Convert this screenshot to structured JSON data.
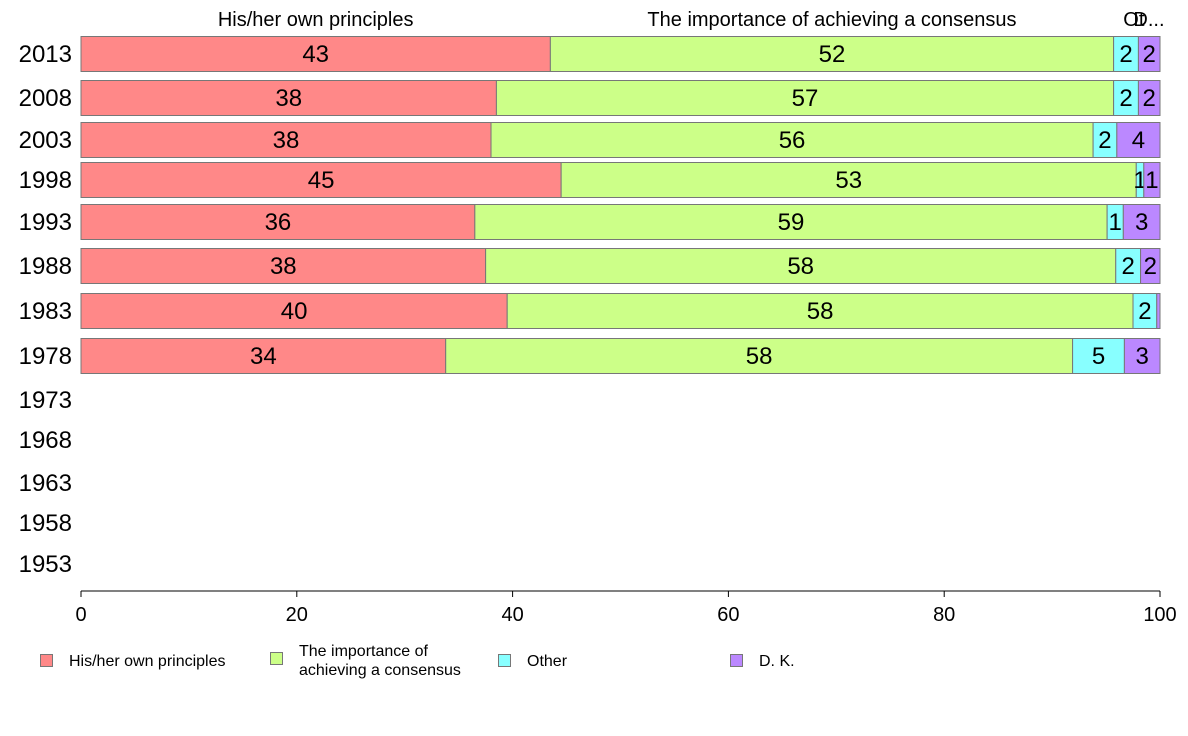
{
  "chart_data": {
    "type": "bar",
    "orientation": "horizontal",
    "stacked": true,
    "categories": [
      "2013",
      "2008",
      "2003",
      "1998",
      "1993",
      "1988",
      "1983",
      "1978",
      "1973",
      "1968",
      "1963",
      "1958",
      "1953"
    ],
    "series": [
      {
        "name": "His/her own principles",
        "short_label": "His/her own principles",
        "color": "#ff8888",
        "values": [
          43.5,
          38.5,
          38,
          44.5,
          36.5,
          37.5,
          39.5,
          33.8,
          null,
          null,
          null,
          null,
          null
        ],
        "labels": [
          "43",
          "38",
          "38",
          "45",
          "36",
          "38",
          "40",
          "34",
          "",
          "",
          "",
          "",
          ""
        ]
      },
      {
        "name": "The importance of\nachieving a consensus",
        "short_label": "The importance of achieving a consensus",
        "color": "#ccff88",
        "values": [
          52.2,
          57.2,
          55.8,
          53.3,
          58.6,
          58.4,
          58,
          58.1,
          null,
          null,
          null,
          null,
          null
        ],
        "labels": [
          "52",
          "57",
          "56",
          "53",
          "59",
          "58",
          "58",
          "58",
          "",
          "",
          "",
          "",
          ""
        ]
      },
      {
        "name": "Other",
        "short_label": "Ot",
        "color": "#88ffff",
        "values": [
          2.3,
          2.3,
          2.2,
          0.7,
          1.5,
          2.3,
          2.2,
          4.8,
          null,
          null,
          null,
          null,
          null
        ],
        "labels": [
          "2",
          "2",
          "2",
          "1",
          "1",
          "2",
          "2",
          "5",
          "",
          "",
          "",
          "",
          ""
        ]
      },
      {
        "name": "D. K.",
        "short_label": "D...",
        "color": "#bb88ff",
        "values": [
          2,
          2,
          4,
          1.5,
          3.4,
          1.8,
          0.3,
          3.3,
          null,
          null,
          null,
          null,
          null
        ],
        "labels": [
          "2",
          "2",
          "4",
          "1",
          "3",
          "2",
          "",
          "3",
          "",
          "",
          "",
          "",
          ""
        ]
      }
    ],
    "xlim": [
      0,
      100
    ],
    "xticks": [
      "0",
      "20",
      "40",
      "60",
      "80",
      "100"
    ],
    "legend_position": "bottom-left",
    "grid": false
  }
}
